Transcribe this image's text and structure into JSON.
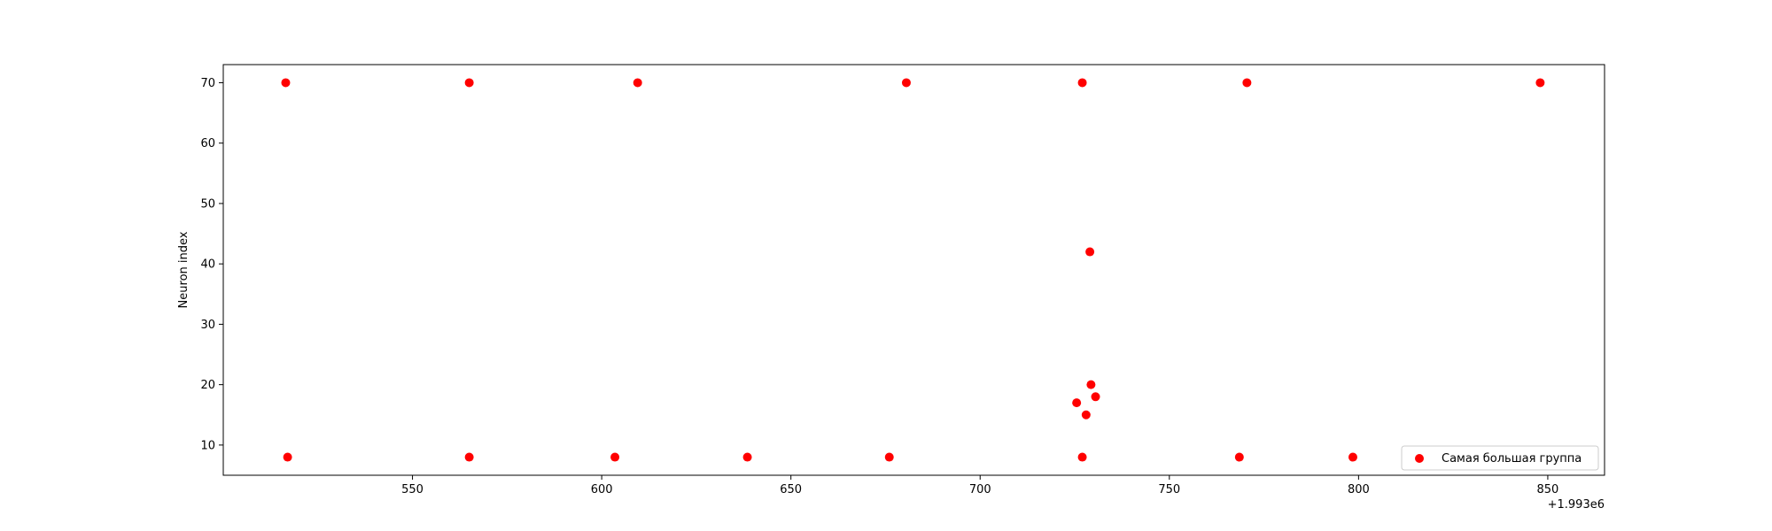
{
  "chart_data": {
    "type": "scatter",
    "title": "",
    "xlabel": "",
    "ylabel": "Neuron index",
    "x_offset_label": "+1.993e6",
    "xlim": [
      1993500,
      1993865
    ],
    "ylim": [
      5,
      73
    ],
    "xticks": [
      1993550,
      1993600,
      1993650,
      1993700,
      1993750,
      1993800,
      1993850
    ],
    "xtick_labels": [
      "550",
      "600",
      "650",
      "700",
      "750",
      "800",
      "850"
    ],
    "yticks": [
      10,
      20,
      30,
      40,
      50,
      60,
      70
    ],
    "ytick_labels": [
      "10",
      "20",
      "30",
      "40",
      "50",
      "60",
      "70"
    ],
    "grid": false,
    "legend_position": "lower-right",
    "series": [
      {
        "name": "Самая большая группа",
        "color": "#ff0000",
        "points": [
          {
            "x": 1993516.5,
            "y": 70
          },
          {
            "x": 1993565.0,
            "y": 70
          },
          {
            "x": 1993609.5,
            "y": 70
          },
          {
            "x": 1993680.5,
            "y": 70
          },
          {
            "x": 1993727.0,
            "y": 70
          },
          {
            "x": 1993770.5,
            "y": 70
          },
          {
            "x": 1993848.0,
            "y": 70
          },
          {
            "x": 1993729.0,
            "y": 42
          },
          {
            "x": 1993729.3,
            "y": 20
          },
          {
            "x": 1993730.5,
            "y": 18
          },
          {
            "x": 1993725.5,
            "y": 17
          },
          {
            "x": 1993728.0,
            "y": 15
          },
          {
            "x": 1993517.0,
            "y": 8
          },
          {
            "x": 1993565.0,
            "y": 8
          },
          {
            "x": 1993603.5,
            "y": 8
          },
          {
            "x": 1993638.5,
            "y": 8
          },
          {
            "x": 1993676.0,
            "y": 8
          },
          {
            "x": 1993727.0,
            "y": 8
          },
          {
            "x": 1993768.5,
            "y": 8
          },
          {
            "x": 1993798.5,
            "y": 8
          }
        ]
      }
    ]
  }
}
